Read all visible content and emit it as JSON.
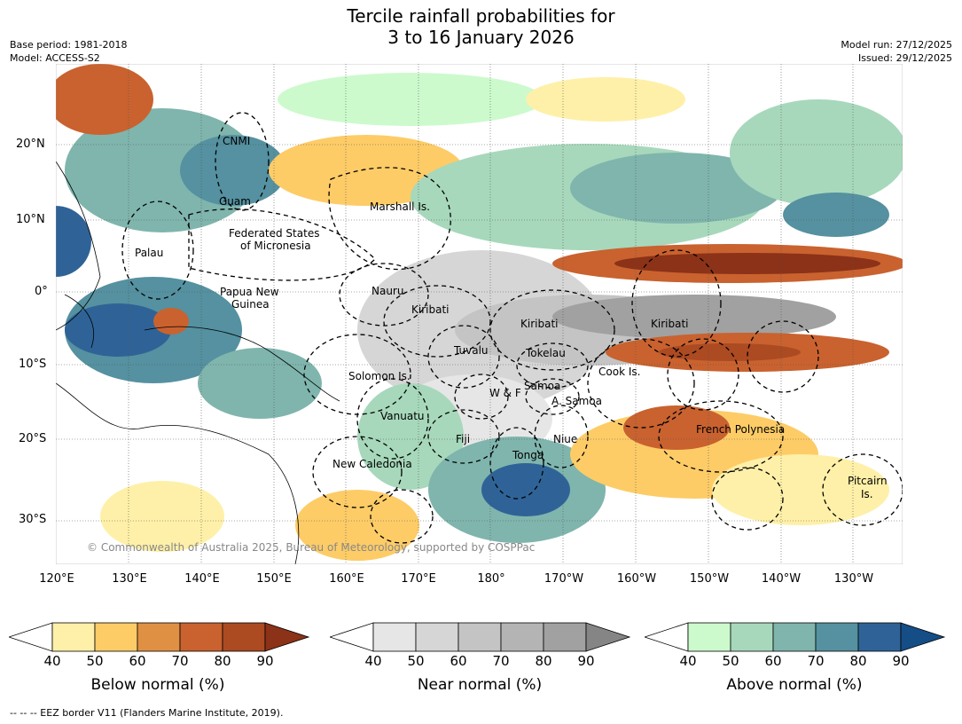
{
  "title_line1": "Tercile rainfall probabilities for",
  "title_line2": "3 to 16 January 2026",
  "meta": {
    "base_period": "Base period: 1981-2018",
    "model": "Model: ACCESS-S2",
    "model_run": "Model run: 27/12/2025",
    "issued": "Issued: 29/12/2025"
  },
  "axes": {
    "lat_labels": [
      "20°N",
      "10°N",
      "0°",
      "10°S",
      "20°S",
      "30°S"
    ],
    "lon_labels": [
      "120°E",
      "130°E",
      "140°E",
      "150°E",
      "160°E",
      "170°E",
      "180°",
      "170°W",
      "160°W",
      "150°W",
      "140°W",
      "130°W"
    ]
  },
  "regions": [
    "CNMI",
    "Guam",
    "Marshall Is.",
    "Federated States",
    "of Micronesia",
    "Palau",
    "Papua New",
    "Guinea",
    "Nauru",
    "Kiribati",
    "Kiribati",
    "Kiribati",
    "Tuvalu",
    "Tokelau",
    "Solomon Is.",
    "W & F",
    "Samoa",
    "A. Samoa",
    "Cook Is.",
    "Vanuatu",
    "Fiji",
    "Niue",
    "Tonga",
    "French Polynesia",
    "New Caledonia",
    "Pitcairn",
    "Is."
  ],
  "copyright": "© Commonwealth of Australia 2025, Bureau of Meteorology, supported by COSPPac",
  "colorbars": [
    {
      "label": "Below normal (%)",
      "ticks": [
        "40",
        "50",
        "60",
        "70",
        "80",
        "90"
      ],
      "colors": [
        "#fef0a8",
        "#fdcc67",
        "#e09043",
        "#c9622f",
        "#ac4a22"
      ],
      "low": "#ffffff",
      "high": "#8b3218"
    },
    {
      "label": "Near normal (%)",
      "ticks": [
        "40",
        "50",
        "60",
        "70",
        "80",
        "90"
      ],
      "colors": [
        "#e6e6e6",
        "#d6d6d6",
        "#c4c4c4",
        "#b4b4b4",
        "#a1a1a1"
      ],
      "low": "#ffffff",
      "high": "#858585"
    },
    {
      "label": "Above normal (%)",
      "ticks": [
        "40",
        "50",
        "60",
        "70",
        "80",
        "90"
      ],
      "colors": [
        "#ccfacd",
        "#a7d8bb",
        "#7fb5ad",
        "#5591a0",
        "#2f6397"
      ],
      "low": "#ffffff",
      "high": "#154d86"
    }
  ],
  "footnote": "--  --  -- EEZ border V11 (Flanders Marine Institute, 2019)."
}
